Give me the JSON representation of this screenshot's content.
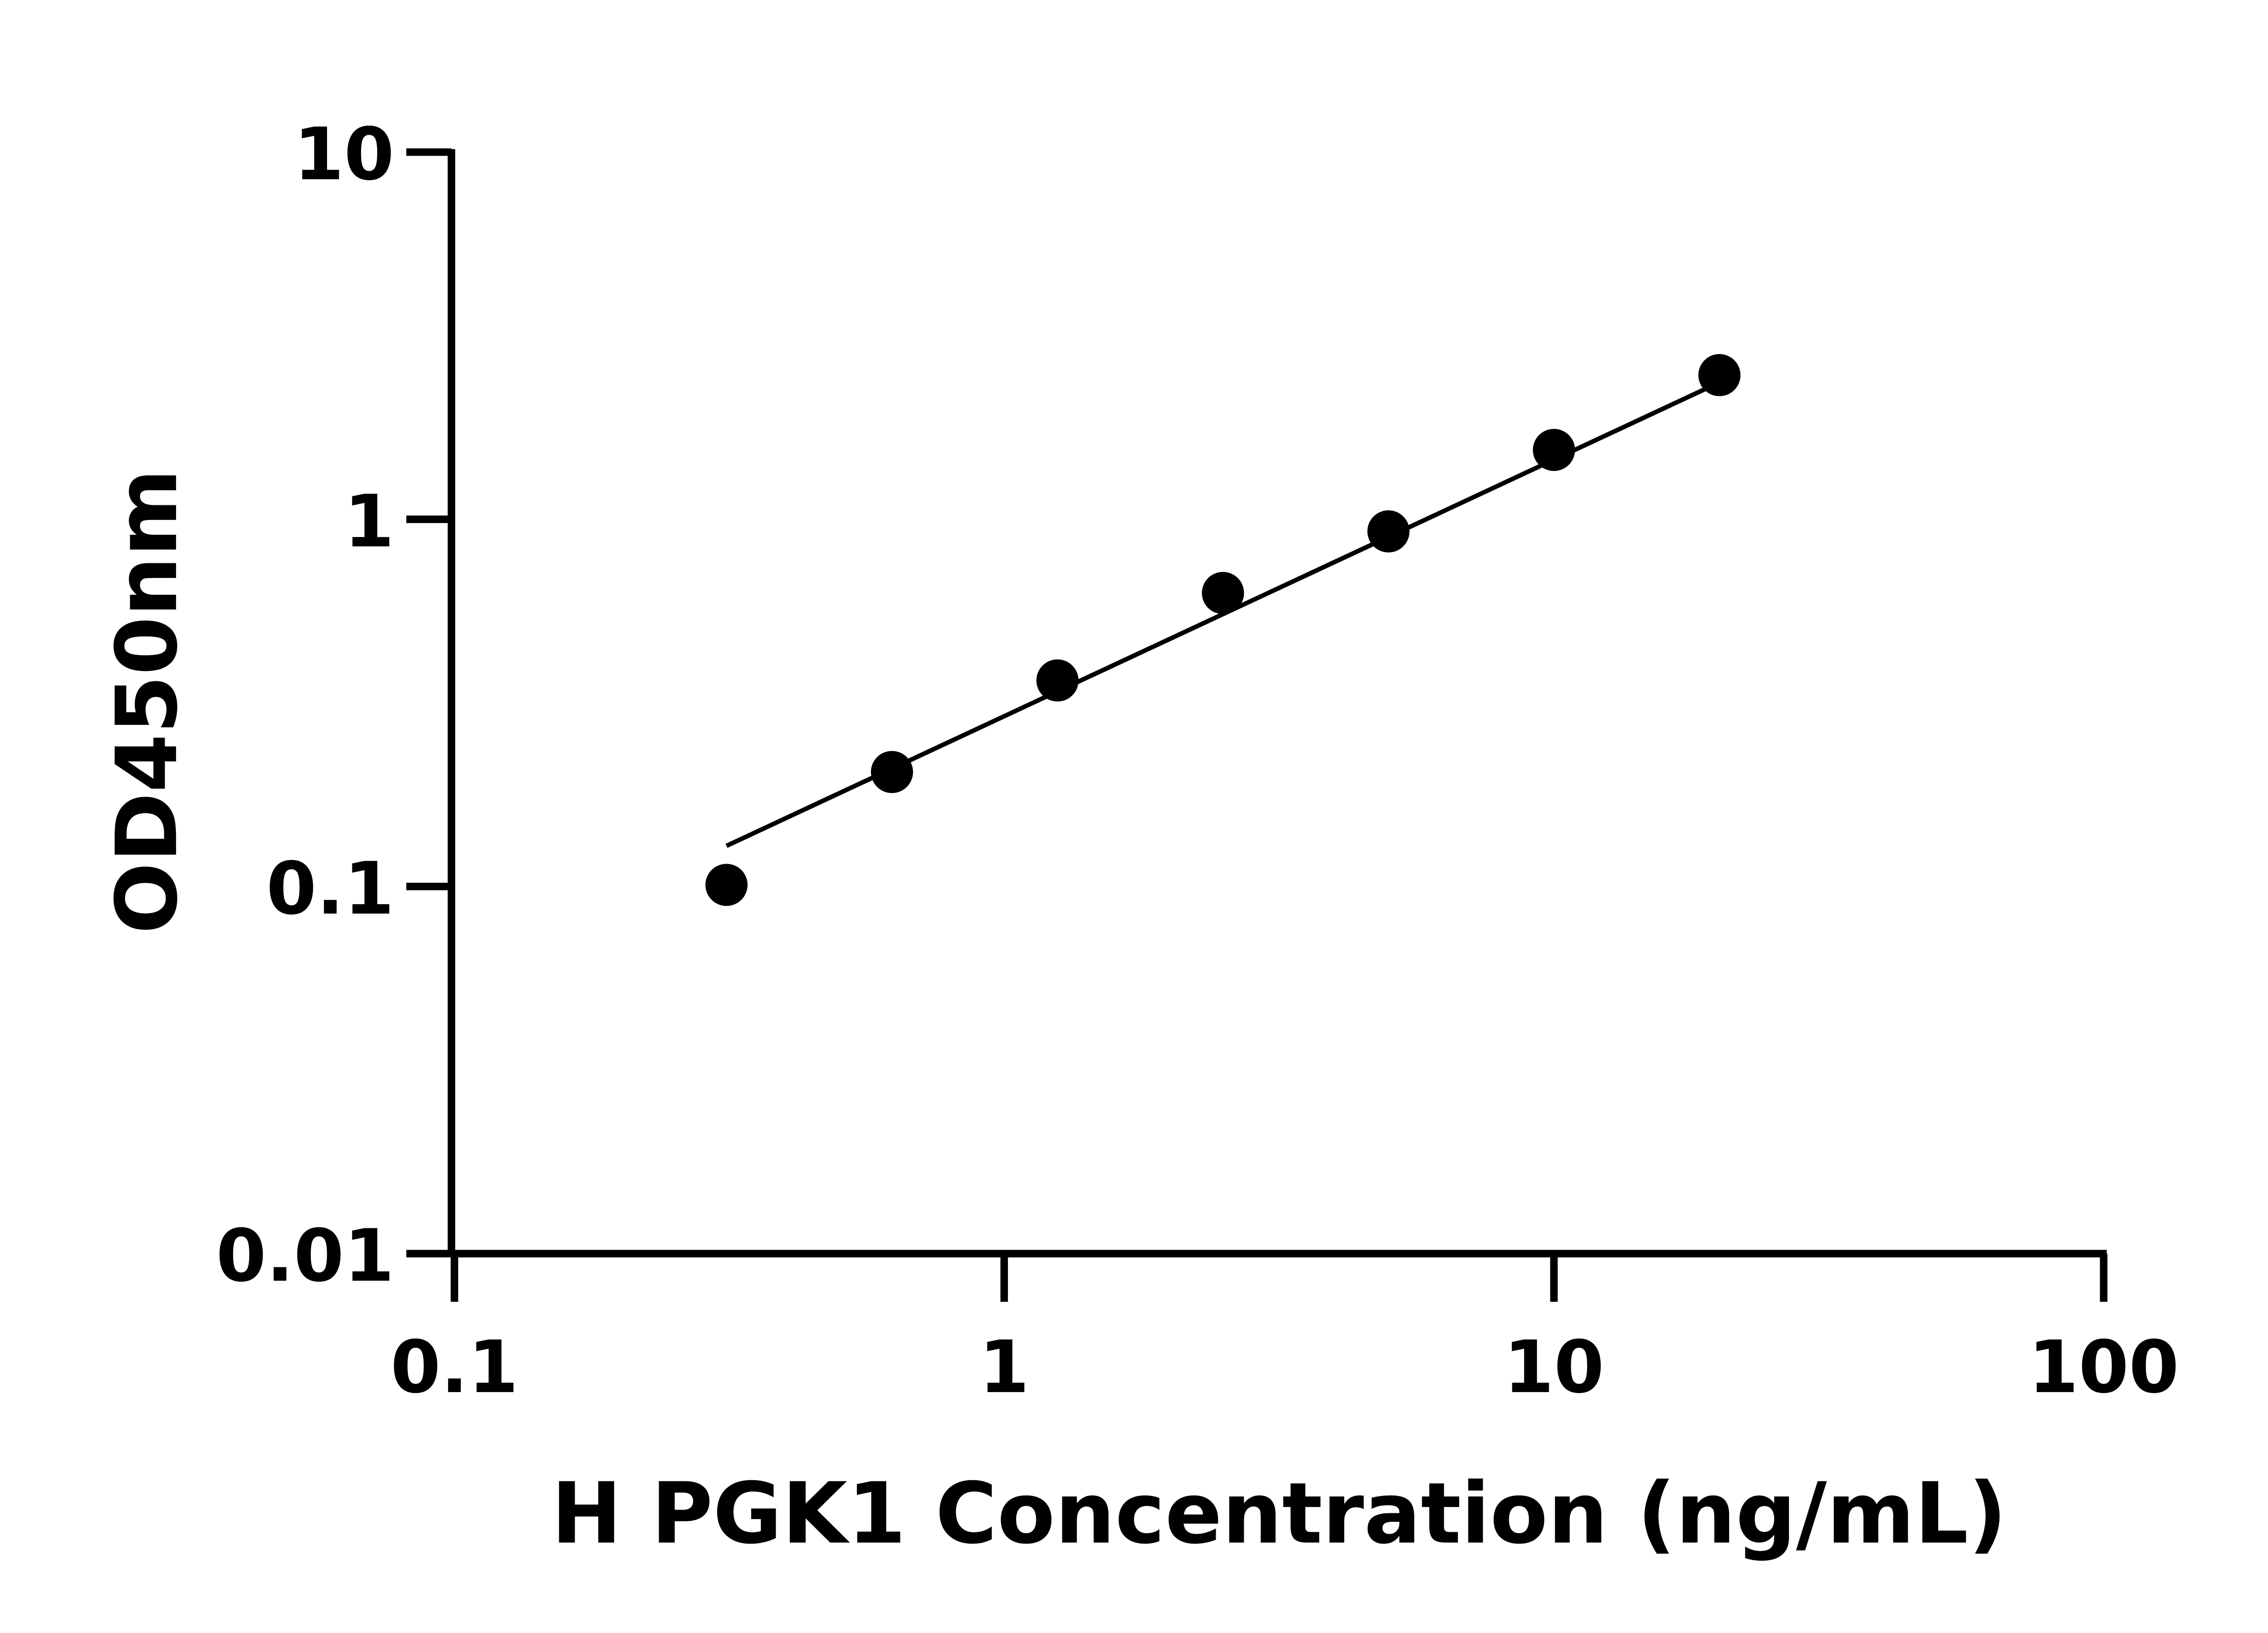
{
  "chart_data": {
    "type": "scatter",
    "title": "",
    "xlabel": "H PGK1 Concentration (ng/mL)",
    "ylabel": "OD450nm",
    "x_scale": "log",
    "y_scale": "log",
    "xlim": [
      0.1,
      100
    ],
    "ylim": [
      0.01,
      10
    ],
    "x_ticks": [
      "0.1",
      "1",
      "10",
      "100"
    ],
    "y_ticks": [
      "0.01",
      "0.1",
      "1",
      "10"
    ],
    "grid": false,
    "series": [
      {
        "x": [
          0.3125,
          0.625,
          1.25,
          2.5,
          5,
          10,
          20
        ],
        "y": [
          0.101,
          0.205,
          0.364,
          0.63,
          0.927,
          1.545,
          2.47
        ],
        "marker_color": "#000000"
      }
    ],
    "fit_line": {
      "x": [
        0.3125,
        20
      ],
      "y": [
        0.129,
        2.36
      ],
      "color": "#000000"
    }
  }
}
